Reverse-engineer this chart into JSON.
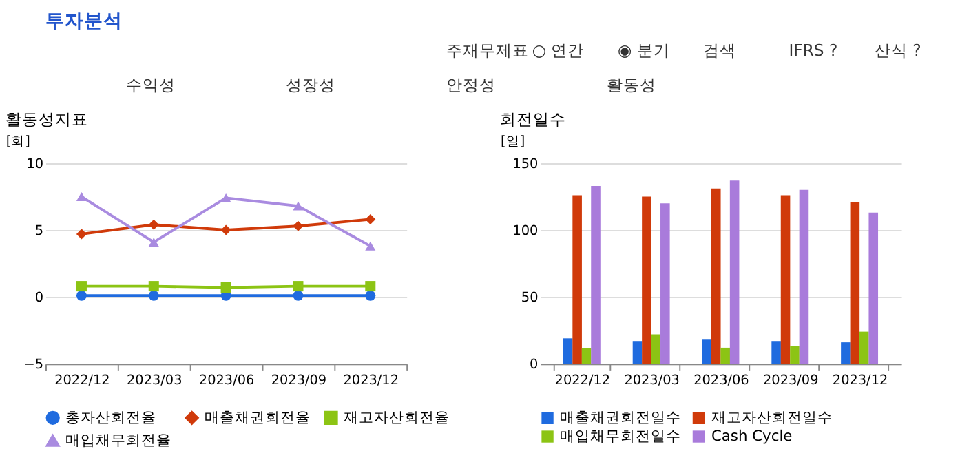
{
  "chart_data": [
    {
      "type": "other",
      "title": "투자분석",
      "annotations": [
        "주재무제표",
        "○ 연간",
        "◉ 분기",
        "검색",
        "IFRS ?",
        "산식 ?",
        "수익성",
        "성장성",
        "안정성",
        "활동성"
      ]
    },
    {
      "type": "line",
      "title": "활동성지표",
      "ylabel": "[회]",
      "categories": [
        "2022/12",
        "2023/03",
        "2023/06",
        "2023/09",
        "2023/12"
      ],
      "ylim": [
        -5,
        10
      ],
      "yticks": [
        -5,
        0,
        5,
        10
      ],
      "grid": "y",
      "legend": "bottom",
      "series": [
        {
          "name": "총자산회전율",
          "color": "#1f6bdf",
          "marker": "circle",
          "values": [
            0.1,
            0.1,
            0.1,
            0.1,
            0.1
          ]
        },
        {
          "name": "매출채권회전율",
          "color": "#d03a0a",
          "marker": "diamond",
          "values": [
            4.7,
            5.4,
            5.0,
            5.3,
            5.8
          ]
        },
        {
          "name": "재고자산회전율",
          "color": "#8cc414",
          "marker": "square",
          "values": [
            0.8,
            0.8,
            0.7,
            0.8,
            0.8
          ]
        },
        {
          "name": "매입채무회전율",
          "color": "#a98be0",
          "marker": "triangle",
          "values": [
            7.5,
            4.1,
            7.4,
            6.8,
            3.8
          ]
        }
      ]
    },
    {
      "type": "bar",
      "title": "회전일수",
      "ylabel": "[일]",
      "categories": [
        "2022/12",
        "2023/03",
        "2023/06",
        "2023/09",
        "2023/12"
      ],
      "ylim": [
        0,
        150
      ],
      "yticks": [
        0,
        50,
        100,
        150
      ],
      "grid": "y",
      "legend": "bottom",
      "series": [
        {
          "name": "매출채권회전일수",
          "color": "#1f6bdf",
          "values": [
            19,
            17,
            18,
            17,
            16
          ]
        },
        {
          "name": "재고자산회전일수",
          "color": "#d03a0a",
          "values": [
            126,
            125,
            131,
            126,
            121
          ]
        },
        {
          "name": "매입채무회전일수",
          "color": "#8cc414",
          "values": [
            12,
            22,
            12,
            13,
            24
          ]
        },
        {
          "name": "Cash Cycle",
          "color": "#a97bdb",
          "values": [
            133,
            120,
            137,
            130,
            113
          ]
        }
      ]
    }
  ]
}
